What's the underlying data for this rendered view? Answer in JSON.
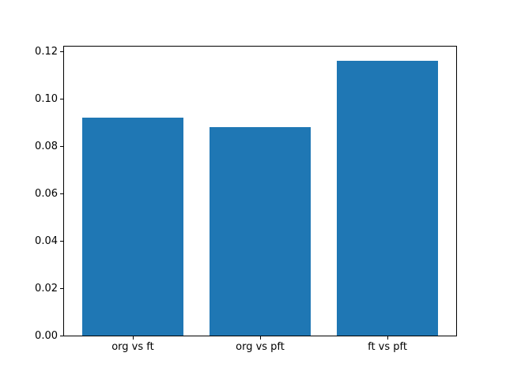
{
  "figure": {
    "background_color": "#ffffff",
    "spine_color": "#000000",
    "text_color": "#000000"
  },
  "chart_data": {
    "type": "bar",
    "title": "",
    "xlabel": "",
    "ylabel": "",
    "categories": [
      "org vs ft",
      "org vs pft",
      "ft vs pft"
    ],
    "values": [
      0.092,
      0.088,
      0.116
    ],
    "bar_color": "#1f77b4",
    "bar_width_fraction": 0.8,
    "xlim": [
      -0.54,
      2.54
    ],
    "ylim": [
      0,
      0.122
    ],
    "yticks": [
      0.0,
      0.02,
      0.04,
      0.06,
      0.08,
      0.1,
      0.12
    ],
    "ytick_labels": [
      "0.00",
      "0.02",
      "0.04",
      "0.06",
      "0.08",
      "0.10",
      "0.12"
    ],
    "grid": false,
    "legend": null
  }
}
